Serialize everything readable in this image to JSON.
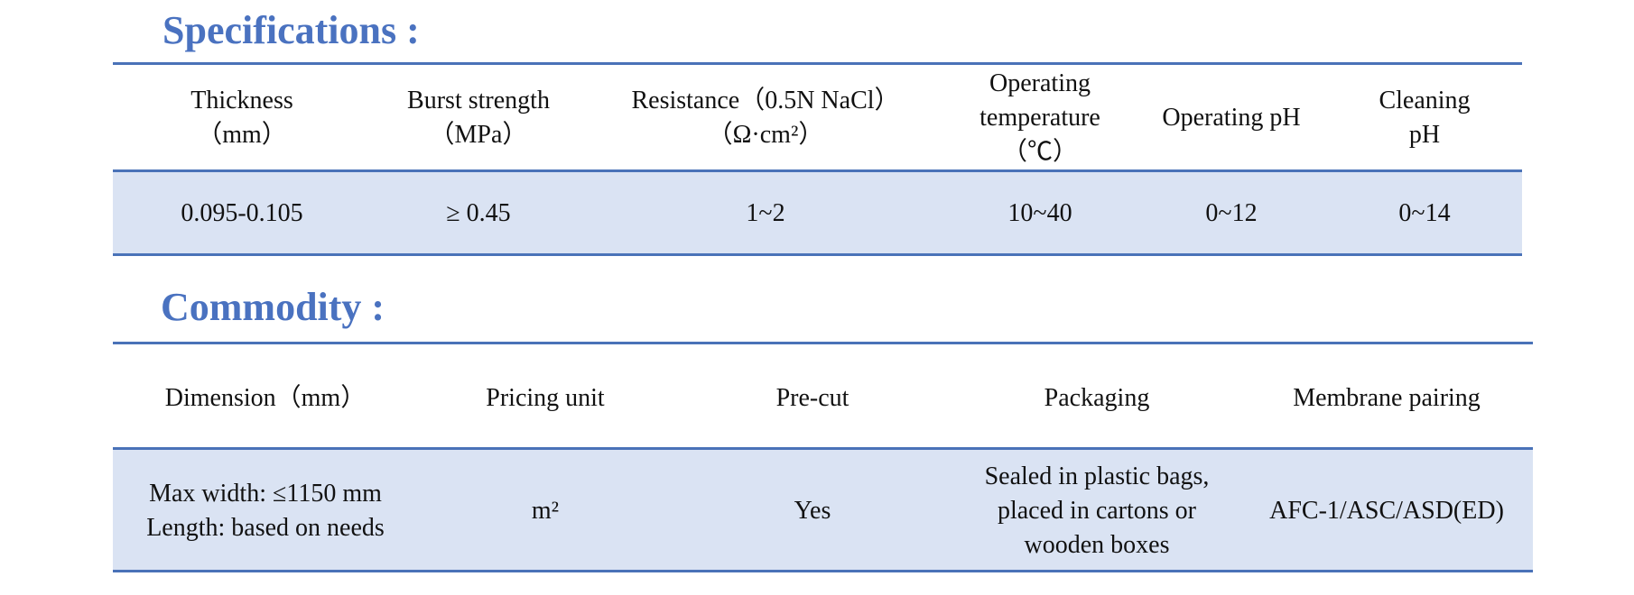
{
  "specifications": {
    "title": "Specifications :",
    "headers": [
      [
        "Thickness",
        "（mm）"
      ],
      [
        "Burst strength",
        "（MPa）"
      ],
      [
        "Resistance（0.5N NaCl）",
        "（Ω·cm²）"
      ],
      [
        "Operating",
        "temperature",
        "（℃）"
      ],
      [
        "Operating pH"
      ],
      [
        "Cleaning",
        "pH"
      ]
    ],
    "row": [
      [
        "0.095-0.105"
      ],
      [
        "≥ 0.45"
      ],
      [
        "1~2"
      ],
      [
        "10~40"
      ],
      [
        "0~12"
      ],
      [
        "0~14"
      ]
    ]
  },
  "commodity": {
    "title": "Commodity :",
    "headers": [
      [
        "Dimension（mm）"
      ],
      [
        "Pricing unit"
      ],
      [
        "Pre-cut"
      ],
      [
        "Packaging"
      ],
      [
        "Membrane pairing"
      ]
    ],
    "row": [
      [
        "Max width: ≤1150 mm",
        "Length: based on needs"
      ],
      [
        "m²"
      ],
      [
        "Yes"
      ],
      [
        "Sealed in plastic bags,",
        "placed in cartons or",
        "wooden boxes"
      ],
      [
        "AFC-1/ASC/ASD(ED)"
      ]
    ]
  }
}
